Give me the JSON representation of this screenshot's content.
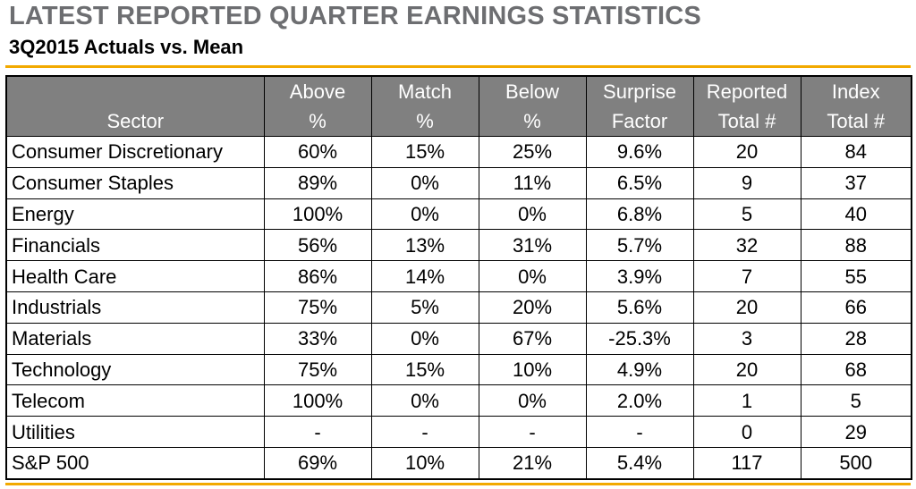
{
  "title": "LATEST REPORTED QUARTER EARNINGS STATISTICS",
  "subtitle": "3Q2015 Actuals vs. Mean",
  "colors": {
    "title_gray": "#6d6e71",
    "header_gray": "#808080",
    "accent_gold": "#f2a900"
  },
  "columns": [
    {
      "line1": "",
      "line2": "Sector"
    },
    {
      "line1": "Above",
      "line2": "%"
    },
    {
      "line1": "Match",
      "line2": "%"
    },
    {
      "line1": "Below",
      "line2": "%"
    },
    {
      "line1": "Surprise",
      "line2": "Factor"
    },
    {
      "line1": "Reported",
      "line2": "Total #"
    },
    {
      "line1": "Index",
      "line2": "Total #"
    }
  ],
  "rows": [
    {
      "sector": "Consumer Discretionary",
      "above": "60%",
      "match": "15%",
      "below": "25%",
      "surprise": "9.6%",
      "reported": "20",
      "index": "84"
    },
    {
      "sector": "Consumer Staples",
      "above": "89%",
      "match": "0%",
      "below": "11%",
      "surprise": "6.5%",
      "reported": "9",
      "index": "37"
    },
    {
      "sector": "Energy",
      "above": "100%",
      "match": "0%",
      "below": "0%",
      "surprise": "6.8%",
      "reported": "5",
      "index": "40"
    },
    {
      "sector": "Financials",
      "above": "56%",
      "match": "13%",
      "below": "31%",
      "surprise": "5.7%",
      "reported": "32",
      "index": "88"
    },
    {
      "sector": "Health Care",
      "above": "86%",
      "match": "14%",
      "below": "0%",
      "surprise": "3.9%",
      "reported": "7",
      "index": "55"
    },
    {
      "sector": "Industrials",
      "above": "75%",
      "match": "5%",
      "below": "20%",
      "surprise": "5.6%",
      "reported": "20",
      "index": "66"
    },
    {
      "sector": "Materials",
      "above": "33%",
      "match": "0%",
      "below": "67%",
      "surprise": "-25.3%",
      "reported": "3",
      "index": "28"
    },
    {
      "sector": "Technology",
      "above": "75%",
      "match": "15%",
      "below": "10%",
      "surprise": "4.9%",
      "reported": "20",
      "index": "68"
    },
    {
      "sector": "Telecom",
      "above": "100%",
      "match": "0%",
      "below": "0%",
      "surprise": "2.0%",
      "reported": "1",
      "index": "5"
    },
    {
      "sector": "Utilities",
      "above": "-",
      "match": "-",
      "below": "-",
      "surprise": "-",
      "reported": "0",
      "index": "29"
    },
    {
      "sector": "S&P 500",
      "above": "69%",
      "match": "10%",
      "below": "21%",
      "surprise": "5.4%",
      "reported": "117",
      "index": "500"
    }
  ]
}
